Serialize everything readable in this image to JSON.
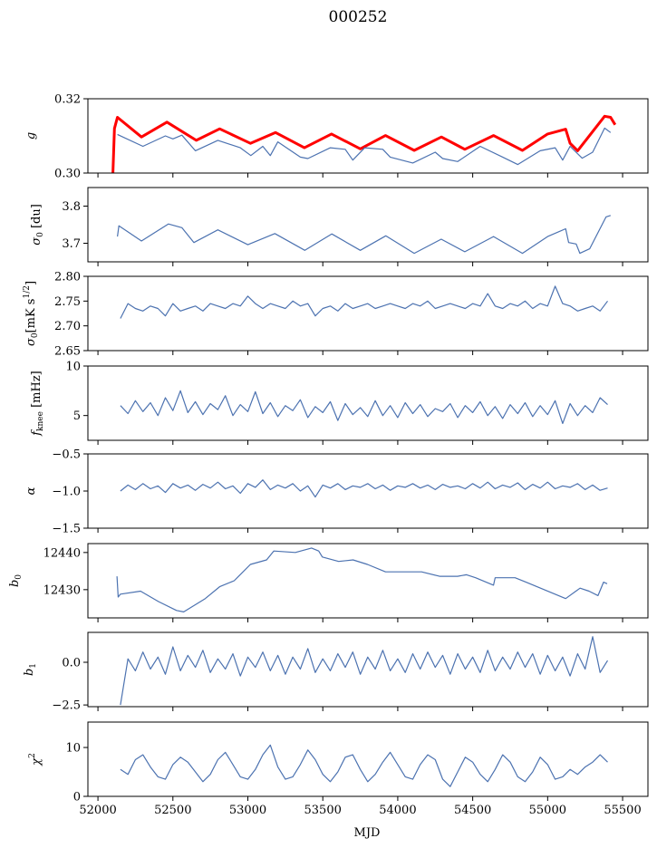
{
  "title": "000252",
  "chart_data": {
    "type": "line",
    "title": "000252",
    "xlabel": "MJD",
    "xlim": [
      51933,
      55669
    ],
    "xticks": [
      52000,
      52500,
      53000,
      53500,
      54000,
      54500,
      55000,
      55500
    ],
    "grid": false,
    "noisy_grid": {
      "start": 52150,
      "step": 50
    },
    "panels": [
      {
        "ylabel": {
          "main": "g",
          "sub": "",
          "sup": "",
          "rest": ""
        },
        "ylim": [
          0.3,
          0.32
        ],
        "yticks": [
          "0.30",
          "0.32"
        ],
        "series": [
          {
            "name": "g-reference",
            "color": "#ff0000",
            "width": 3,
            "x": [
              52100,
              52110,
              52130,
              52290,
              52460,
              52656,
              52812,
              53017,
              53185,
              53377,
              53558,
              53750,
              53918,
              54110,
              54291,
              54447,
              54639,
              54832,
              55000,
              55120,
              55150,
              55200,
              55380,
              55420,
              55450
            ],
            "y": [
              0.3,
              0.312,
              0.315,
              0.3097,
              0.3137,
              0.3088,
              0.3119,
              0.308,
              0.3109,
              0.3068,
              0.3105,
              0.3065,
              0.3101,
              0.3061,
              0.3097,
              0.3064,
              0.3101,
              0.3061,
              0.3105,
              0.3118,
              0.308,
              0.306,
              0.3153,
              0.315,
              0.313
            ]
          },
          {
            "name": "g",
            "color": "#4c72b0",
            "width": 1.2,
            "x": [
              52130,
              52300,
              52450,
              52500,
              52560,
              52650,
              52800,
              52950,
              53020,
              53100,
              53150,
              53200,
              53350,
              53400,
              53550,
              53650,
              53700,
              53780,
              53900,
              53950,
              54100,
              54250,
              54300,
              54400,
              54550,
              54700,
              54800,
              54950,
              55050,
              55100,
              55150,
              55230,
              55300,
              55380,
              55420
            ],
            "y": [
              0.3104,
              0.3072,
              0.31,
              0.3092,
              0.3102,
              0.306,
              0.3088,
              0.3068,
              0.3047,
              0.3072,
              0.3047,
              0.3084,
              0.3043,
              0.3039,
              0.3068,
              0.3064,
              0.3035,
              0.3068,
              0.3064,
              0.3043,
              0.3027,
              0.3056,
              0.3039,
              0.3031,
              0.3072,
              0.3043,
              0.3023,
              0.306,
              0.3068,
              0.3035,
              0.3072,
              0.304,
              0.3056,
              0.3121,
              0.3109
            ]
          }
        ]
      },
      {
        "ylabel": {
          "main": "σ",
          "sub": "0",
          "sup": "",
          "rest": " [du]"
        },
        "ylim": [
          3.65,
          3.85
        ],
        "yticks": [
          "3.7",
          "3.8"
        ],
        "series": [
          {
            "name": "sigma0-du",
            "color": "#4c72b0",
            "width": 1.2,
            "x": [
              52130,
              52140,
              52290,
              52470,
              52560,
              52640,
              52800,
              53000,
              53180,
              53380,
              53560,
              53750,
              53920,
              54110,
              54290,
              54447,
              54639,
              54832,
              55000,
              55120,
              55140,
              55190,
              55215,
              55280,
              55390,
              55420
            ],
            "y": [
              3.718,
              3.747,
              3.706,
              3.752,
              3.742,
              3.702,
              3.736,
              3.696,
              3.726,
              3.681,
              3.725,
              3.681,
              3.72,
              3.673,
              3.711,
              3.677,
              3.718,
              3.673,
              3.718,
              3.739,
              3.702,
              3.698,
              3.673,
              3.685,
              3.771,
              3.775
            ]
          }
        ]
      },
      {
        "ylabel": {
          "main": "σ",
          "sub": "0",
          "sup": "1/2",
          "rest": "[mK s"
        },
        "ylim": [
          2.65,
          2.8
        ],
        "yticks": [
          "2.65",
          "2.70",
          "2.75",
          "2.80"
        ],
        "series": [
          {
            "name": "sigma0-mK",
            "color": "#4c72b0",
            "width": 1.2,
            "grid": true,
            "y": [
              2.715,
              2.745,
              2.735,
              2.73,
              2.74,
              2.735,
              2.72,
              2.745,
              2.73,
              2.735,
              2.74,
              2.73,
              2.745,
              2.74,
              2.735,
              2.745,
              2.74,
              2.76,
              2.745,
              2.735,
              2.745,
              2.74,
              2.735,
              2.75,
              2.74,
              2.745,
              2.72,
              2.735,
              2.74,
              2.73,
              2.745,
              2.735,
              2.74,
              2.745,
              2.735,
              2.74,
              2.745,
              2.74,
              2.735,
              2.745,
              2.74,
              2.75,
              2.735,
              2.74,
              2.745,
              2.74,
              2.735,
              2.745,
              2.74,
              2.765,
              2.74,
              2.735,
              2.745,
              2.74,
              2.75,
              2.735,
              2.745,
              2.74,
              2.78,
              2.745,
              2.74,
              2.73,
              2.735,
              2.74,
              2.73,
              2.75
            ]
          }
        ]
      },
      {
        "ylabel": {
          "main": "f",
          "sub": "knee",
          "sup": "",
          "rest": " [mHz]"
        },
        "ylim": [
          2.5,
          10
        ],
        "yticks": [
          "5",
          "10"
        ],
        "series": [
          {
            "name": "fknee",
            "color": "#4c72b0",
            "width": 1.2,
            "grid": true,
            "y": [
              6.0,
              5.2,
              6.5,
              5.4,
              6.3,
              5.0,
              6.8,
              5.5,
              7.5,
              5.3,
              6.4,
              5.1,
              6.2,
              5.6,
              7.0,
              5.0,
              6.1,
              5.4,
              7.4,
              5.2,
              6.3,
              4.9,
              6.0,
              5.5,
              6.6,
              4.8,
              5.9,
              5.3,
              6.4,
              4.5,
              6.2,
              5.1,
              5.8,
              4.9,
              6.5,
              5.0,
              6.0,
              4.8,
              6.3,
              5.2,
              6.1,
              4.9,
              5.7,
              5.4,
              6.2,
              4.8,
              6.0,
              5.3,
              6.4,
              5.0,
              5.9,
              4.7,
              6.1,
              5.2,
              6.3,
              4.9,
              6.0,
              5.1,
              6.5,
              4.2,
              6.2,
              5.0,
              6.0,
              5.3,
              6.8,
              6.1
            ]
          }
        ]
      },
      {
        "ylabel": {
          "main": "α",
          "sub": "",
          "sup": "",
          "rest": ""
        },
        "ylim": [
          -1.5,
          -0.5
        ],
        "yticks": [
          "−1.5",
          "−1.0",
          "−0.5"
        ],
        "series": [
          {
            "name": "alpha",
            "color": "#4c72b0",
            "width": 1.2,
            "grid": true,
            "y": [
              -1.0,
              -0.92,
              -0.98,
              -0.9,
              -0.97,
              -0.93,
              -1.02,
              -0.9,
              -0.96,
              -0.92,
              -0.99,
              -0.91,
              -0.96,
              -0.88,
              -0.97,
              -0.93,
              -1.03,
              -0.9,
              -0.95,
              -0.85,
              -0.98,
              -0.92,
              -0.96,
              -0.9,
              -1.0,
              -0.93,
              -1.08,
              -0.92,
              -0.96,
              -0.9,
              -0.98,
              -0.93,
              -0.95,
              -0.9,
              -0.97,
              -0.92,
              -0.99,
              -0.93,
              -0.95,
              -0.9,
              -0.96,
              -0.92,
              -0.98,
              -0.91,
              -0.95,
              -0.93,
              -0.97,
              -0.9,
              -0.96,
              -0.88,
              -0.97,
              -0.92,
              -0.95,
              -0.89,
              -0.98,
              -0.91,
              -0.96,
              -0.88,
              -0.97,
              -0.93,
              -0.95,
              -0.9,
              -0.98,
              -0.92,
              -0.99,
              -0.96
            ]
          }
        ]
      },
      {
        "ylabel": {
          "main": "b",
          "sub": "0",
          "sup": "",
          "rest": ""
        },
        "ylim": [
          12422.4,
          12442.4
        ],
        "yticks": [
          "12430",
          "12440"
        ],
        "series": [
          {
            "name": "b0",
            "color": "#4c72b0",
            "width": 1.2,
            "x": [
              52127,
              52135,
              52150,
              52284,
              52404,
              52524,
              52572,
              52716,
              52812,
              52909,
              53017,
              53125,
              53173,
              53317,
              53425,
              53473,
              53497,
              53606,
              53702,
              53798,
              53918,
              54087,
              54159,
              54279,
              54399,
              54459,
              54519,
              54639,
              54650,
              54783,
              54856,
              54976,
              55120,
              55216,
              55276,
              55336,
              55373,
              55397
            ],
            "y": [
              12433.6,
              12428.0,
              12428.8,
              12429.6,
              12426.8,
              12424.4,
              12424.0,
              12427.6,
              12430.8,
              12432.4,
              12436.8,
              12438.0,
              12440.4,
              12440.0,
              12441.2,
              12440.4,
              12438.8,
              12437.6,
              12438.0,
              12436.8,
              12434.8,
              12434.8,
              12434.8,
              12433.6,
              12433.6,
              12434.0,
              12433.2,
              12431.2,
              12433.2,
              12433.2,
              12432.0,
              12430.0,
              12427.6,
              12430.4,
              12429.6,
              12428.4,
              12432.0,
              12431.6
            ]
          }
        ]
      },
      {
        "ylabel": {
          "main": "b",
          "sub": "1",
          "sup": "",
          "rest": ""
        },
        "ylim": [
          -2.6,
          1.75
        ],
        "yticks": [
          "−2.5",
          "0.0"
        ],
        "series": [
          {
            "name": "b1",
            "color": "#4c72b0",
            "width": 1.2,
            "grid": true,
            "y": [
              -2.5,
              0.2,
              -0.5,
              0.6,
              -0.4,
              0.3,
              -0.7,
              0.9,
              -0.5,
              0.4,
              -0.3,
              0.7,
              -0.6,
              0.2,
              -0.4,
              0.5,
              -0.8,
              0.3,
              -0.3,
              0.6,
              -0.5,
              0.4,
              -0.7,
              0.3,
              -0.4,
              0.8,
              -0.6,
              0.2,
              -0.5,
              0.5,
              -0.3,
              0.6,
              -0.7,
              0.3,
              -0.4,
              0.7,
              -0.5,
              0.2,
              -0.6,
              0.5,
              -0.4,
              0.6,
              -0.3,
              0.4,
              -0.7,
              0.5,
              -0.4,
              0.3,
              -0.6,
              0.7,
              -0.5,
              0.3,
              -0.4,
              0.6,
              -0.3,
              0.5,
              -0.7,
              0.4,
              -0.5,
              0.3,
              -0.8,
              0.5,
              -0.4,
              1.5,
              -0.6,
              0.1
            ]
          }
        ]
      },
      {
        "ylabel": {
          "main": "χ",
          "sub": "",
          "sup": "2",
          "rest": ""
        },
        "ylim": [
          0,
          15.2
        ],
        "yticks": [
          "0",
          "10"
        ],
        "series": [
          {
            "name": "chi2",
            "color": "#4c72b0",
            "width": 1.2,
            "grid": true,
            "y": [
              5.5,
              4.5,
              7.5,
              8.5,
              6.0,
              4.0,
              3.5,
              6.5,
              8.0,
              7.0,
              5.0,
              3.0,
              4.5,
              7.5,
              9.0,
              6.5,
              4.0,
              3.5,
              5.5,
              8.5,
              10.5,
              6.0,
              3.5,
              4.0,
              6.5,
              9.5,
              7.5,
              4.5,
              3.0,
              5.0,
              8.0,
              8.5,
              5.5,
              3.0,
              4.5,
              7.0,
              9.0,
              6.5,
              4.0,
              3.5,
              6.5,
              8.5,
              7.5,
              3.5,
              2.0,
              5.0,
              8.0,
              7.0,
              4.5,
              3.0,
              5.5,
              8.5,
              7.0,
              4.0,
              3.0,
              5.0,
              8.0,
              6.5,
              3.5,
              4.0,
              5.5,
              4.5,
              6.0,
              7.0,
              8.5,
              7.0
            ]
          }
        ]
      }
    ]
  }
}
